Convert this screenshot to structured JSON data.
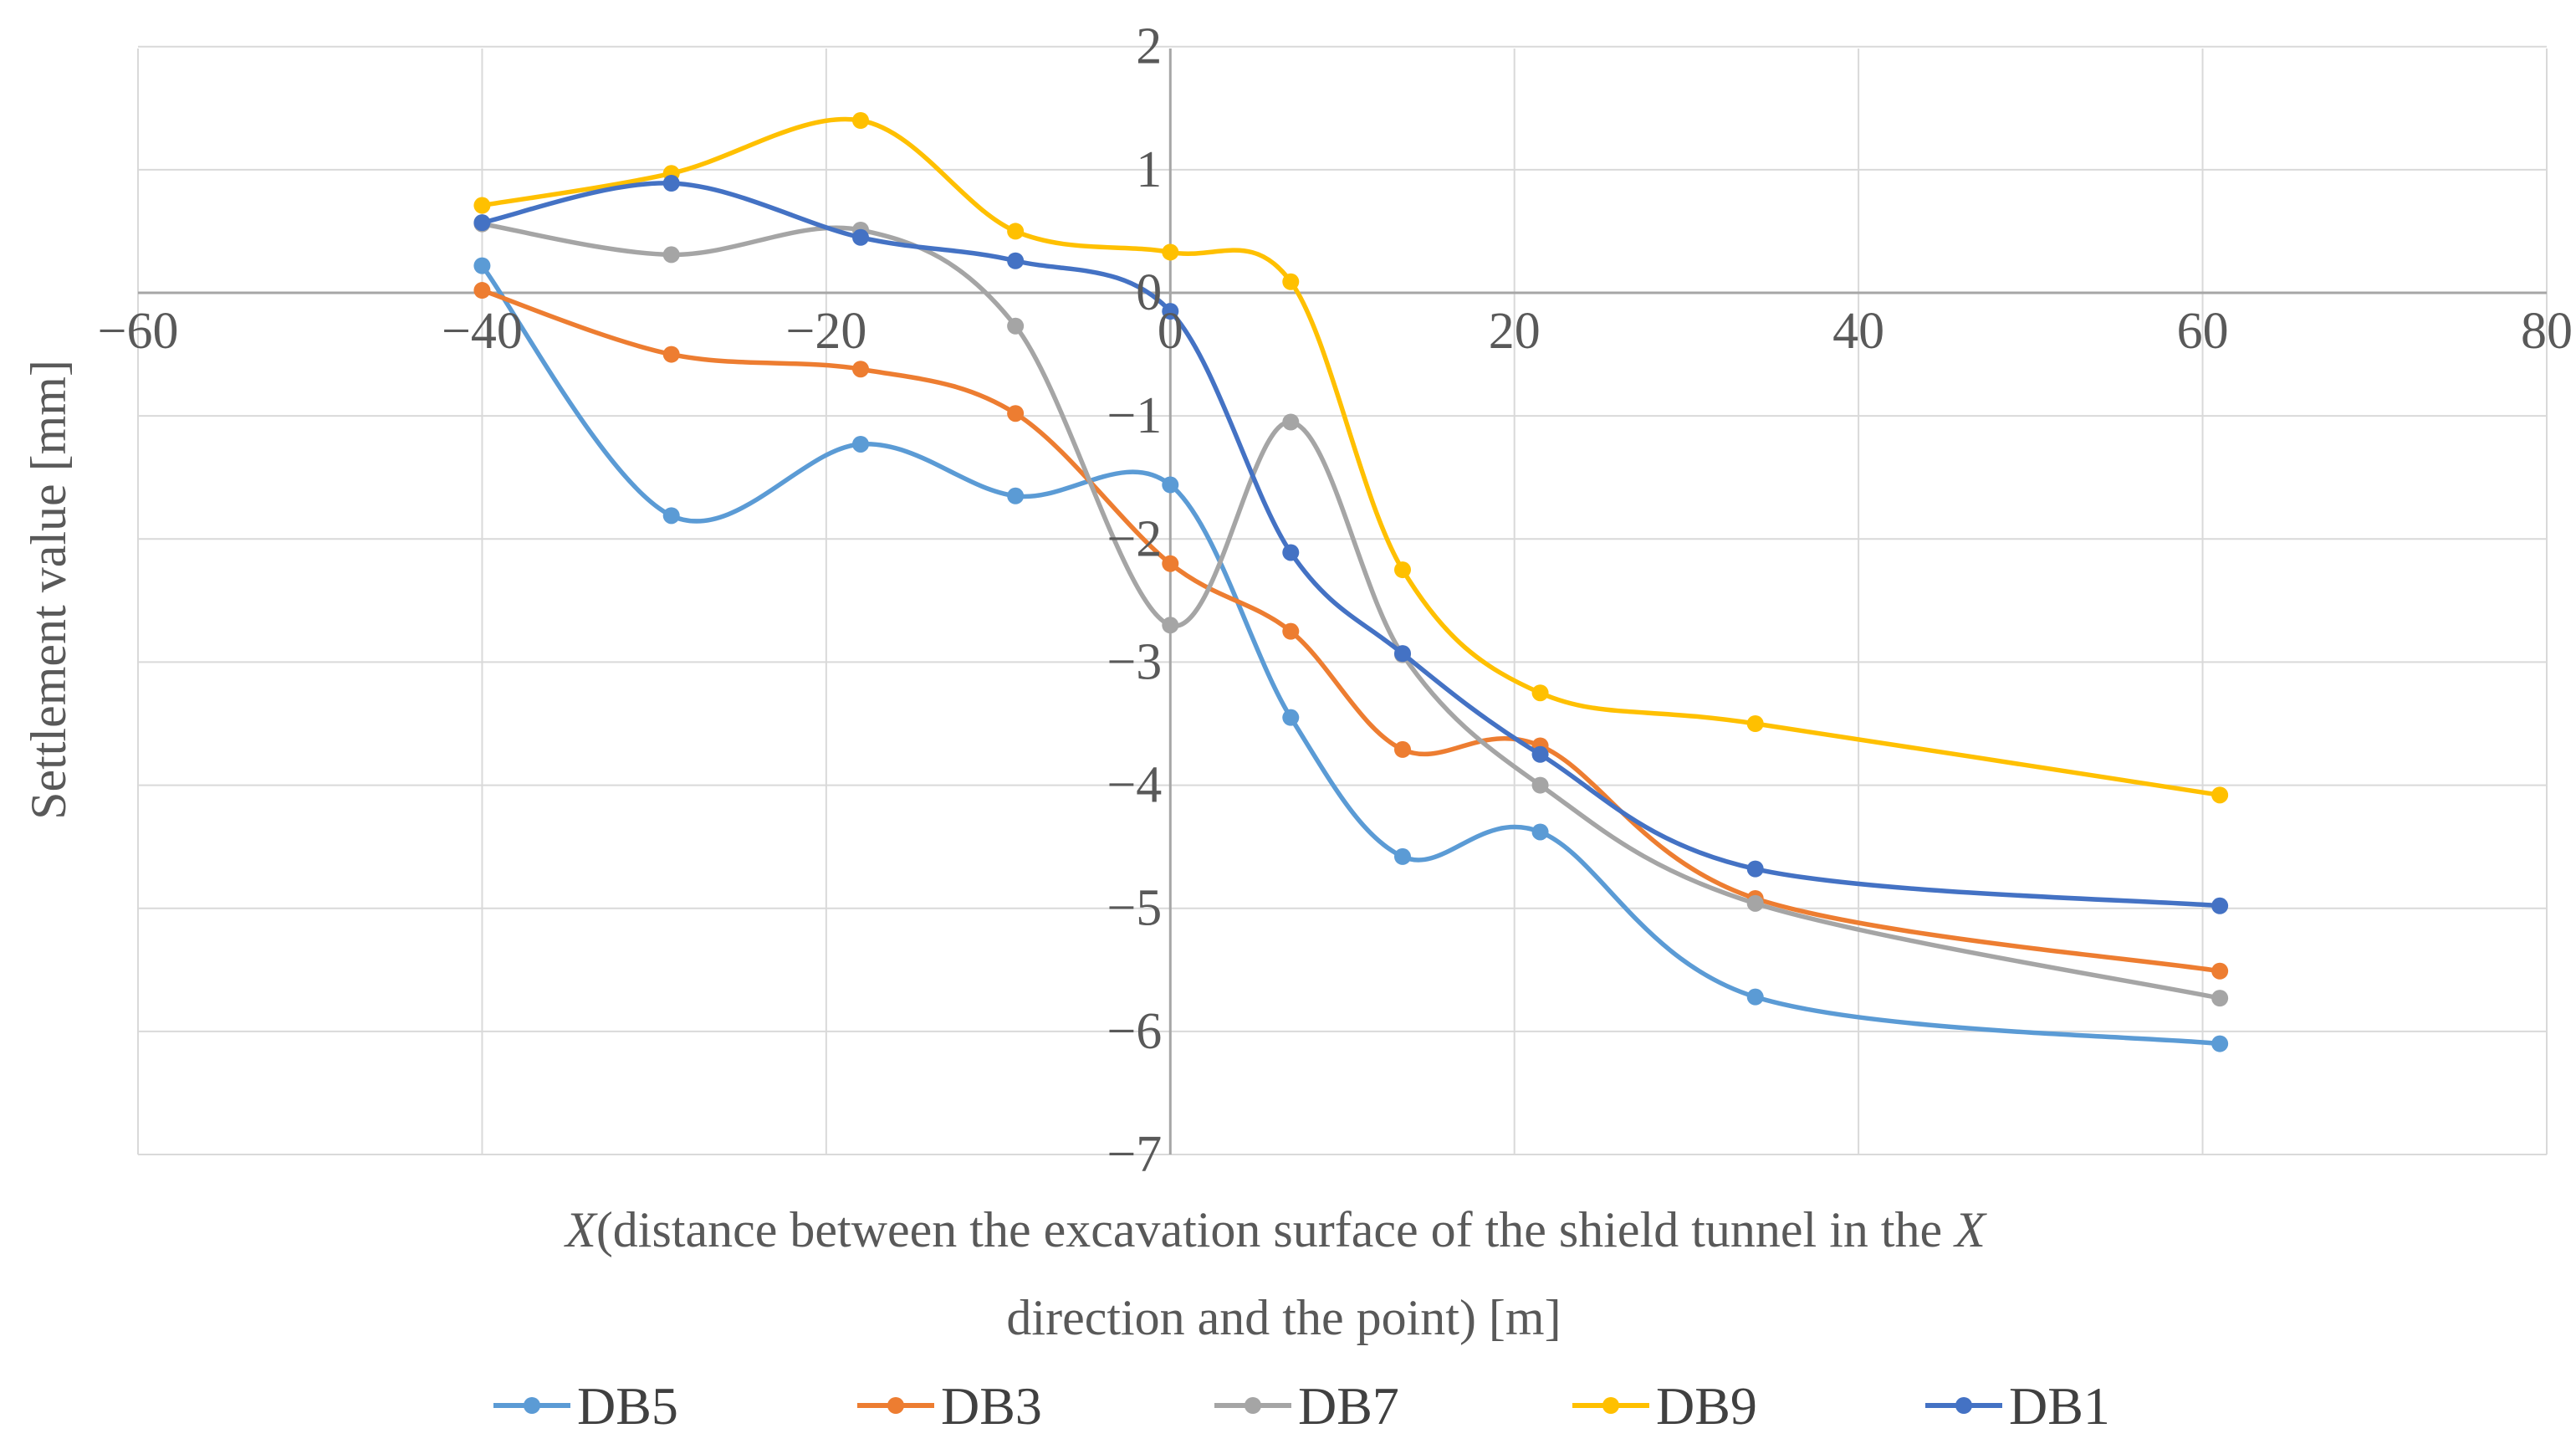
{
  "chart_data": {
    "type": "line",
    "smooth": true,
    "title": "",
    "xlabel_italic_prefix": "X",
    "xlabel_line1_mid": "(distance between the excavation surface of the shield tunnel in the ",
    "xlabel_line1_italic_suffix": "X",
    "xlabel_line2": "direction and the point) [m]",
    "ylabel": "Settlement value [mm]",
    "xlim": [
      -60,
      80
    ],
    "ylim": [
      -7,
      2
    ],
    "xticks": [
      -60,
      -40,
      -20,
      0,
      20,
      40,
      60,
      80
    ],
    "xtick_labels": [
      "−60",
      "−40",
      "−20",
      "0",
      "20",
      "40",
      "60",
      "80"
    ],
    "yticks": [
      2,
      1,
      0,
      -1,
      -2,
      -3,
      -4,
      -5,
      -6,
      -7
    ],
    "ytick_labels": [
      "2",
      "1",
      "0",
      "−1",
      "−2",
      "−3",
      "−4",
      "−5",
      "−6",
      "−7"
    ],
    "grid": true,
    "legend_position": "bottom",
    "series": [
      {
        "name": "DB5",
        "color": "#5B9BD5",
        "x": [
          -40,
          -29,
          -18,
          -9,
          0,
          7,
          13.5,
          21.5,
          34,
          61
        ],
        "y": [
          0.22,
          -1.81,
          -1.23,
          -1.65,
          -1.56,
          -3.45,
          -4.58,
          -4.38,
          -5.72,
          -6.1
        ]
      },
      {
        "name": "DB3",
        "color": "#ED7D31",
        "x": [
          -40,
          -29,
          -18,
          -9,
          0,
          7,
          13.5,
          21.5,
          34,
          61
        ],
        "y": [
          0.02,
          -0.5,
          -0.62,
          -0.98,
          -2.2,
          -2.75,
          -3.71,
          -3.68,
          -4.92,
          -5.51
        ]
      },
      {
        "name": "DB7",
        "color": "#A5A5A5",
        "x": [
          -40,
          -29,
          -18,
          -9,
          0,
          7,
          13.5,
          21.5,
          34,
          61
        ],
        "y": [
          0.56,
          0.31,
          0.51,
          -0.27,
          -2.7,
          -1.05,
          -2.94,
          -4.0,
          -4.96,
          -5.73
        ]
      },
      {
        "name": "DB9",
        "color": "#FFC000",
        "x": [
          -40,
          -29,
          -18,
          -9,
          0,
          7,
          13.5,
          21.5,
          34,
          61
        ],
        "y": [
          0.71,
          0.97,
          1.4,
          0.5,
          0.33,
          0.09,
          -2.25,
          -3.25,
          -3.5,
          -4.08
        ]
      },
      {
        "name": "DB1",
        "color": "#4472C4",
        "x": [
          -40,
          -29,
          -18,
          -9,
          0,
          7,
          13.5,
          21.5,
          34,
          61
        ],
        "y": [
          0.57,
          0.89,
          0.45,
          0.26,
          -0.15,
          -2.11,
          -2.93,
          -3.75,
          -4.68,
          -4.98
        ]
      }
    ]
  }
}
